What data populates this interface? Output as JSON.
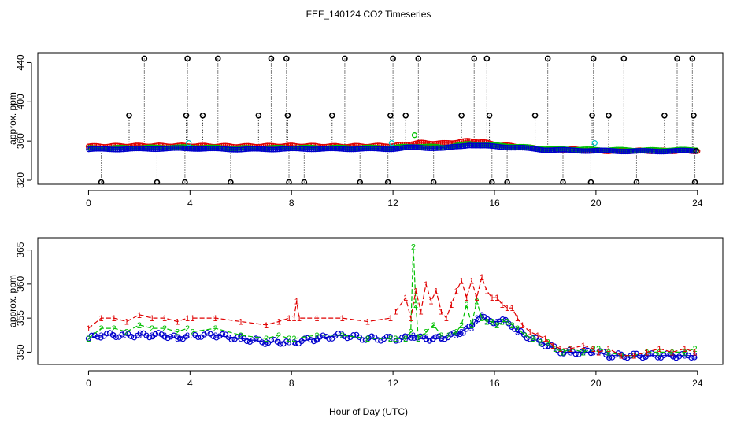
{
  "title": "FEF_140124  CO2 Timeseries",
  "x_axis_label": "Hour of Day (UTC)",
  "series_colors": {
    "black": "#000000",
    "red": "#e00000",
    "green": "#00c000",
    "blue": "#0000cc",
    "cyan": "#00c8c8"
  },
  "chart_data": [
    {
      "type": "scatter",
      "panel": "top",
      "title": "FEF_140124  CO2 Timeseries",
      "xlabel": "",
      "ylabel": "approx. ppm",
      "xlim": [
        -2,
        25
      ],
      "ylim": [
        316,
        450
      ],
      "xticks": [
        0,
        4,
        8,
        12,
        16,
        20,
        24
      ],
      "yticks": [
        320,
        360,
        400,
        440
      ],
      "baseline_red": [
        [
          0.0,
          354.5
        ],
        [
          2.0,
          355.0
        ],
        [
          4.0,
          355.0
        ],
        [
          6.0,
          354.5
        ],
        [
          8.0,
          355.0
        ],
        [
          10.0,
          354.5
        ],
        [
          12.0,
          355.0
        ],
        [
          12.5,
          356.5
        ],
        [
          13.0,
          358.0
        ],
        [
          14.0,
          357.5
        ],
        [
          15.0,
          360.0
        ],
        [
          15.5,
          359.0
        ],
        [
          16.0,
          356.5
        ],
        [
          17.0,
          354.0
        ],
        [
          18.0,
          351.5
        ],
        [
          19.0,
          351.5
        ],
        [
          20.0,
          350.0
        ],
        [
          22.0,
          350.0
        ],
        [
          24.0,
          350.0
        ]
      ],
      "baseline_blue": [
        [
          0.0,
          351.5
        ],
        [
          2.0,
          352.0
        ],
        [
          4.0,
          352.5
        ],
        [
          6.0,
          351.5
        ],
        [
          8.0,
          352.0
        ],
        [
          10.0,
          352.0
        ],
        [
          12.0,
          352.0
        ],
        [
          12.5,
          353.0
        ],
        [
          13.0,
          353.5
        ],
        [
          14.0,
          352.5
        ],
        [
          15.0,
          356.0
        ],
        [
          15.5,
          355.0
        ],
        [
          16.0,
          354.5
        ],
        [
          17.0,
          353.0
        ],
        [
          18.0,
          351.0
        ],
        [
          19.0,
          350.5
        ],
        [
          20.0,
          350.0
        ],
        [
          22.0,
          349.5
        ],
        [
          24.0,
          350.0
        ]
      ],
      "spikes": [
        {
          "x": 0.5,
          "y": 318
        },
        {
          "x": 1.6,
          "y": 386
        },
        {
          "x": 2.2,
          "y": 444
        },
        {
          "x": 2.7,
          "y": 318
        },
        {
          "x": 3.8,
          "y": 318
        },
        {
          "x": 3.85,
          "y": 386
        },
        {
          "x": 3.9,
          "y": 444
        },
        {
          "x": 4.5,
          "y": 386
        },
        {
          "x": 5.1,
          "y": 444
        },
        {
          "x": 5.6,
          "y": 318
        },
        {
          "x": 6.7,
          "y": 386
        },
        {
          "x": 7.2,
          "y": 444
        },
        {
          "x": 7.8,
          "y": 444
        },
        {
          "x": 7.85,
          "y": 386
        },
        {
          "x": 7.9,
          "y": 318
        },
        {
          "x": 8.5,
          "y": 318
        },
        {
          "x": 9.6,
          "y": 386
        },
        {
          "x": 10.1,
          "y": 444
        },
        {
          "x": 10.7,
          "y": 318
        },
        {
          "x": 11.8,
          "y": 318
        },
        {
          "x": 11.9,
          "y": 386
        },
        {
          "x": 12.0,
          "y": 444
        },
        {
          "x": 12.5,
          "y": 386
        },
        {
          "x": 13.0,
          "y": 444
        },
        {
          "x": 13.6,
          "y": 318
        },
        {
          "x": 14.7,
          "y": 386
        },
        {
          "x": 15.2,
          "y": 444
        },
        {
          "x": 15.7,
          "y": 444
        },
        {
          "x": 15.8,
          "y": 386
        },
        {
          "x": 15.9,
          "y": 318
        },
        {
          "x": 16.5,
          "y": 318
        },
        {
          "x": 17.6,
          "y": 386
        },
        {
          "x": 18.1,
          "y": 444
        },
        {
          "x": 18.7,
          "y": 318
        },
        {
          "x": 19.8,
          "y": 318
        },
        {
          "x": 19.85,
          "y": 386
        },
        {
          "x": 19.9,
          "y": 444
        },
        {
          "x": 20.5,
          "y": 386
        },
        {
          "x": 21.1,
          "y": 444
        },
        {
          "x": 21.6,
          "y": 318
        },
        {
          "x": 22.7,
          "y": 386
        },
        {
          "x": 23.2,
          "y": 444
        },
        {
          "x": 23.8,
          "y": 444
        },
        {
          "x": 23.85,
          "y": 386
        },
        {
          "x": 23.9,
          "y": 318
        }
      ],
      "cyan_points": [
        {
          "x": 3.95,
          "y": 358
        },
        {
          "x": 11.95,
          "y": 358
        },
        {
          "x": 19.95,
          "y": 358
        }
      ],
      "green_points": [
        {
          "x": 12.85,
          "y": 366
        }
      ]
    },
    {
      "type": "line",
      "panel": "bottom",
      "title": "",
      "xlabel": "Hour of Day (UTC)",
      "ylabel": "approx. ppm",
      "xlim": [
        -2,
        25
      ],
      "ylim": [
        348.2,
        366.8
      ],
      "xticks": [
        0,
        4,
        8,
        12,
        16,
        20,
        24
      ],
      "yticks": [
        350,
        355,
        360,
        365
      ],
      "gaps": [
        [
          3.9,
          4.1
        ],
        [
          7.9,
          8.1
        ],
        [
          11.9,
          12.1
        ],
        [
          19.9,
          20.1
        ]
      ],
      "series": [
        {
          "name": "1",
          "marker": "1",
          "color": "red",
          "points": [
            [
              0.0,
              353.5
            ],
            [
              0.5,
              355.0
            ],
            [
              1.0,
              355.0
            ],
            [
              1.5,
              354.5
            ],
            [
              2.0,
              355.5
            ],
            [
              2.5,
              355.0
            ],
            [
              3.0,
              355.0
            ],
            [
              3.5,
              354.5
            ],
            [
              3.9,
              355.0
            ],
            [
              4.1,
              355.0
            ],
            [
              5.0,
              355.0
            ],
            [
              6.0,
              354.5
            ],
            [
              7.0,
              354.0
            ],
            [
              7.5,
              354.5
            ],
            [
              7.9,
              355.0
            ],
            [
              8.1,
              355.0
            ],
            [
              8.2,
              357.5
            ],
            [
              8.3,
              355.0
            ],
            [
              9.0,
              355.0
            ],
            [
              10.0,
              355.0
            ],
            [
              11.0,
              354.5
            ],
            [
              11.9,
              355.0
            ],
            [
              12.1,
              356.0
            ],
            [
              12.5,
              358.0
            ],
            [
              12.7,
              355.0
            ],
            [
              12.9,
              359.0
            ],
            [
              13.1,
              356.0
            ],
            [
              13.3,
              360.0
            ],
            [
              13.5,
              357.5
            ],
            [
              13.7,
              359.0
            ],
            [
              13.9,
              356.0
            ],
            [
              14.1,
              355.0
            ],
            [
              14.3,
              357.0
            ],
            [
              14.5,
              359.0
            ],
            [
              14.7,
              360.5
            ],
            [
              14.9,
              358.0
            ],
            [
              15.1,
              360.5
            ],
            [
              15.3,
              358.0
            ],
            [
              15.5,
              361.0
            ],
            [
              15.7,
              359.0
            ],
            [
              15.9,
              358.0
            ],
            [
              16.1,
              358.0
            ],
            [
              16.3,
              357.0
            ],
            [
              16.5,
              356.5
            ],
            [
              16.7,
              356.5
            ],
            [
              16.9,
              355.0
            ],
            [
              17.1,
              354.0
            ],
            [
              17.4,
              353.0
            ],
            [
              17.7,
              352.5
            ],
            [
              18.0,
              352.0
            ],
            [
              18.3,
              351.0
            ],
            [
              18.6,
              350.5
            ],
            [
              19.0,
              350.5
            ],
            [
              19.5,
              351.0
            ],
            [
              19.9,
              350.5
            ],
            [
              20.1,
              350.0
            ],
            [
              20.5,
              350.5
            ],
            [
              21.0,
              349.5
            ],
            [
              21.5,
              349.5
            ],
            [
              22.0,
              350.0
            ],
            [
              22.5,
              350.5
            ],
            [
              23.0,
              350.0
            ],
            [
              23.5,
              350.5
            ],
            [
              23.9,
              350.0
            ]
          ]
        },
        {
          "name": "2",
          "marker": "2",
          "color": "green",
          "points": [
            [
              0.0,
              352.0
            ],
            [
              0.5,
              353.5
            ],
            [
              1.0,
              353.5
            ],
            [
              1.5,
              353.0
            ],
            [
              2.0,
              354.0
            ],
            [
              2.5,
              353.5
            ],
            [
              3.0,
              353.5
            ],
            [
              3.5,
              353.0
            ],
            [
              3.9,
              353.5
            ],
            [
              4.1,
              353.0
            ],
            [
              5.0,
              353.5
            ],
            [
              6.0,
              352.5
            ],
            [
              7.0,
              352.0
            ],
            [
              7.5,
              352.5
            ],
            [
              7.9,
              352.0
            ],
            [
              8.1,
              352.0
            ],
            [
              9.0,
              352.5
            ],
            [
              10.0,
              352.5
            ],
            [
              11.0,
              352.0
            ],
            [
              11.9,
              352.0
            ],
            [
              12.1,
              352.0
            ],
            [
              12.5,
              352.0
            ],
            [
              12.7,
              353.0
            ],
            [
              12.8,
              365.5
            ],
            [
              12.9,
              357.0
            ],
            [
              13.0,
              352.0
            ],
            [
              13.3,
              353.0
            ],
            [
              13.6,
              354.0
            ],
            [
              13.9,
              352.5
            ],
            [
              14.2,
              352.5
            ],
            [
              14.5,
              353.0
            ],
            [
              14.7,
              354.0
            ],
            [
              14.9,
              357.0
            ],
            [
              15.1,
              354.0
            ],
            [
              15.3,
              357.5
            ],
            [
              15.5,
              355.0
            ],
            [
              15.7,
              354.5
            ],
            [
              15.9,
              354.5
            ],
            [
              16.1,
              354.0
            ],
            [
              16.3,
              354.5
            ],
            [
              16.5,
              354.5
            ],
            [
              16.7,
              354.0
            ],
            [
              16.9,
              353.5
            ],
            [
              17.2,
              352.5
            ],
            [
              17.5,
              352.0
            ],
            [
              17.8,
              351.5
            ],
            [
              18.1,
              351.5
            ],
            [
              18.4,
              350.5
            ],
            [
              18.7,
              350.0
            ],
            [
              19.0,
              350.5
            ],
            [
              19.5,
              350.0
            ],
            [
              19.9,
              350.5
            ],
            [
              20.1,
              350.5
            ],
            [
              20.5,
              350.0
            ],
            [
              21.0,
              349.5
            ],
            [
              21.5,
              349.5
            ],
            [
              22.0,
              350.0
            ],
            [
              22.5,
              350.0
            ],
            [
              23.0,
              350.0
            ],
            [
              23.5,
              350.0
            ],
            [
              23.9,
              350.5
            ]
          ]
        },
        {
          "name": "3",
          "marker": "3",
          "color": "blue",
          "points": [
            [
              0.0,
              352.0
            ],
            [
              0.5,
              352.5
            ],
            [
              1.0,
              352.5
            ],
            [
              1.5,
              352.5
            ],
            [
              2.0,
              352.5
            ],
            [
              2.5,
              352.5
            ],
            [
              3.0,
              352.5
            ],
            [
              3.5,
              352.0
            ],
            [
              3.9,
              352.5
            ],
            [
              4.1,
              352.5
            ],
            [
              5.0,
              352.5
            ],
            [
              6.0,
              352.0
            ],
            [
              7.0,
              351.5
            ],
            [
              7.5,
              351.5
            ],
            [
              7.9,
              351.5
            ],
            [
              8.1,
              351.5
            ],
            [
              9.0,
              352.0
            ],
            [
              10.0,
              352.5
            ],
            [
              11.0,
              352.0
            ],
            [
              11.9,
              352.0
            ],
            [
              12.1,
              352.0
            ],
            [
              12.5,
              352.0
            ],
            [
              12.8,
              352.5
            ],
            [
              13.0,
              352.0
            ],
            [
              13.3,
              352.0
            ],
            [
              13.6,
              352.0
            ],
            [
              13.9,
              352.0
            ],
            [
              14.2,
              352.5
            ],
            [
              14.5,
              352.5
            ],
            [
              14.7,
              353.0
            ],
            [
              14.9,
              353.5
            ],
            [
              15.1,
              353.5
            ],
            [
              15.3,
              355.0
            ],
            [
              15.5,
              355.5
            ],
            [
              15.7,
              354.5
            ],
            [
              15.9,
              354.5
            ],
            [
              16.1,
              354.5
            ],
            [
              16.3,
              354.5
            ],
            [
              16.5,
              354.5
            ],
            [
              16.7,
              354.0
            ],
            [
              16.9,
              353.0
            ],
            [
              17.2,
              352.5
            ],
            [
              17.5,
              352.0
            ],
            [
              17.8,
              351.5
            ],
            [
              18.1,
              351.0
            ],
            [
              18.4,
              350.5
            ],
            [
              18.7,
              350.0
            ],
            [
              19.0,
              350.0
            ],
            [
              19.5,
              350.0
            ],
            [
              19.9,
              350.0
            ],
            [
              20.1,
              350.0
            ],
            [
              20.5,
              349.5
            ],
            [
              21.0,
              349.5
            ],
            [
              21.5,
              349.5
            ],
            [
              22.0,
              349.5
            ],
            [
              22.5,
              349.5
            ],
            [
              23.0,
              349.5
            ],
            [
              23.5,
              349.5
            ],
            [
              23.9,
              349.5
            ]
          ]
        }
      ]
    }
  ]
}
